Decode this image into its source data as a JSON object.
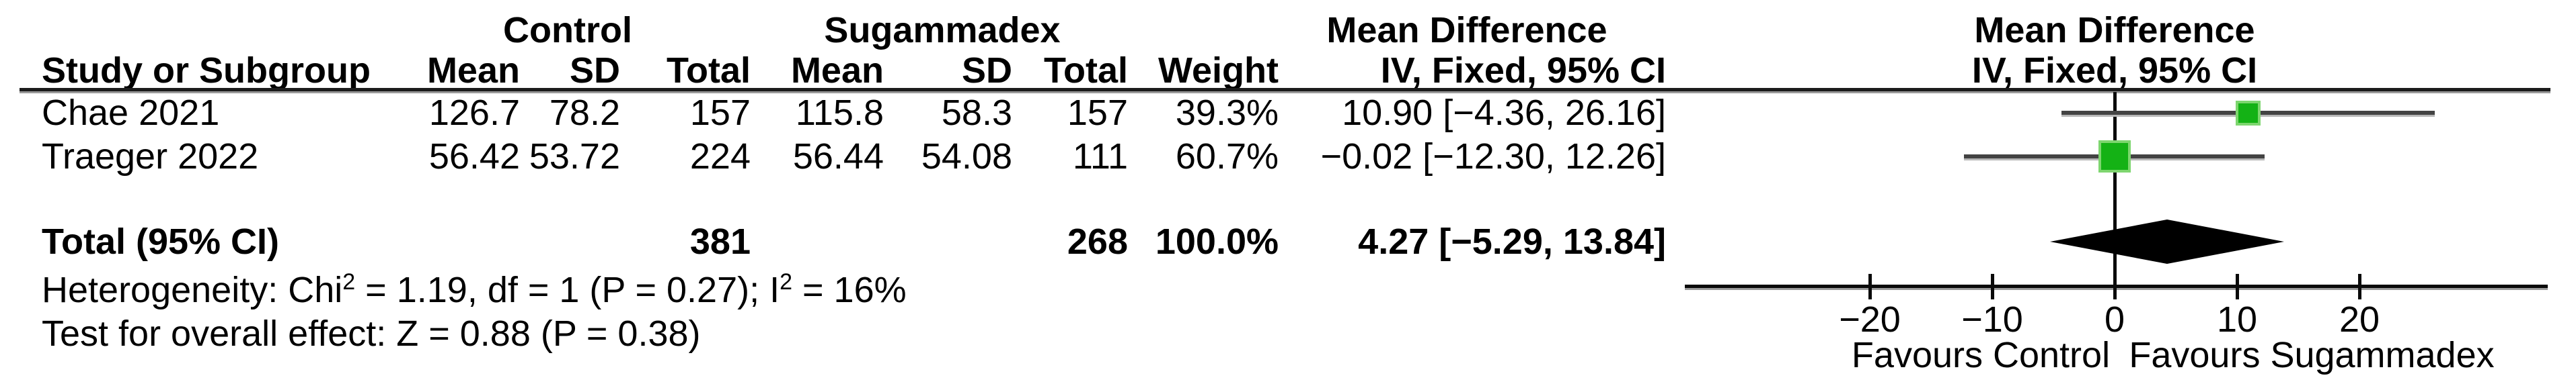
{
  "table": {
    "group_headers": {
      "control": "Control",
      "sugammadex": "Sugammadex",
      "md_text": "Mean Difference",
      "md_plot": "Mean Difference"
    },
    "col_headers": {
      "study": "Study or Subgroup",
      "mean1": "Mean",
      "sd1": "SD",
      "total1": "Total",
      "mean2": "Mean",
      "sd2": "SD",
      "total2": "Total",
      "weight": "Weight",
      "ci_text": "IV, Fixed, 95% CI",
      "ci_plot": "IV, Fixed, 95% CI"
    },
    "rows": [
      {
        "study": "Chae 2021",
        "mean1": "126.7",
        "sd1": "78.2",
        "total1": "157",
        "mean2": "115.8",
        "sd2": "58.3",
        "total2": "157",
        "weight": "39.3%",
        "ci": "10.90 [−4.36, 26.16]"
      },
      {
        "study": "Traeger 2022",
        "mean1": "56.42",
        "sd1": "53.72",
        "total1": "224",
        "mean2": "56.44",
        "sd2": "54.08",
        "total2": "111",
        "weight": "60.7%",
        "ci": "−0.02 [−12.30, 12.26]"
      }
    ],
    "total_row": {
      "label": "Total (95% CI)",
      "total1": "381",
      "total2": "268",
      "weight": "100.0%",
      "ci": "4.27 [−5.29, 13.84]"
    }
  },
  "footer": {
    "het_1": "Heterogeneity: Chi",
    "het_sup1": "2",
    "het_2": " = 1.19, df = 1 (P = 0.27); I",
    "het_sup2": "2",
    "het_3": " = 16%",
    "test": "Test for overall effect: Z = 0.88 (P = 0.38)"
  },
  "axis": {
    "tick_labels": [
      "−20",
      "−10",
      "0",
      "10",
      "20"
    ],
    "favours_left": "Favours Control",
    "favours_right": "Favours Sugammadex"
  },
  "colors": {
    "marker_green": "#14b215",
    "marker_halo": "#7ed66f",
    "ci_line": "#434343",
    "diamond": "#000000",
    "axis": "#0a0a0a"
  },
  "chart_data": {
    "type": "scatter",
    "subtype": "forest-plot-mean-difference",
    "title": "Mean Difference, IV, Fixed, 95% CI",
    "x_axis": {
      "range": [
        -35.1,
        35.4
      ],
      "ticks": [
        -20,
        -10,
        0,
        10,
        20
      ],
      "gridlines": false,
      "label_left": "Favours Control",
      "label_right": "Favours Sugammadex"
    },
    "studies": [
      {
        "name": "Chae 2021",
        "md": 10.9,
        "ci_low": -4.36,
        "ci_high": 26.16,
        "weight_pct": 39.3
      },
      {
        "name": "Traeger 2022",
        "md": -0.02,
        "ci_low": -12.3,
        "ci_high": 12.26,
        "weight_pct": 60.7
      }
    ],
    "total": {
      "name": "Total (95% CI)",
      "md": 4.27,
      "ci_low": -5.29,
      "ci_high": 13.84,
      "weight_pct": 100.0
    }
  }
}
